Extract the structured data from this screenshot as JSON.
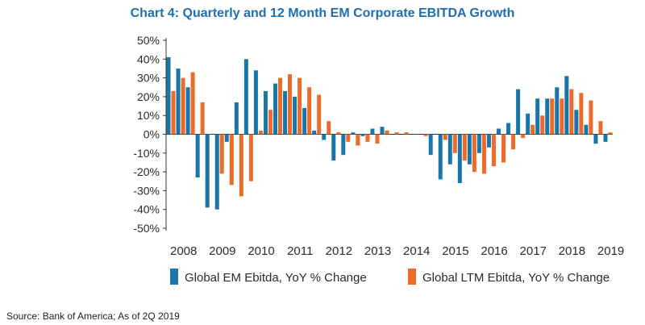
{
  "title": "Chart 4: Quarterly and 12 Month EM Corporate EBITDA Growth",
  "source": "Source: Bank of America; As of 2Q 2019",
  "colors": {
    "em": "#1a76a8",
    "ltm": "#ec6a2a",
    "title": "#1f6fb0",
    "axis": "#333333"
  },
  "chart_data": {
    "type": "bar",
    "title": "Chart 4: Quarterly and 12 Month EM Corporate EBITDA Growth",
    "xlabel": "",
    "ylabel": "",
    "ylim": [
      -50,
      50
    ],
    "y_ticks": [
      "50%",
      "40%",
      "30%",
      "20%",
      "10%",
      "0%",
      "-10%",
      "-20%",
      "-30%",
      "-40%",
      "-50%"
    ],
    "x_tick_labels": [
      "2008",
      "2009",
      "2010",
      "2011",
      "2012",
      "2013",
      "2014",
      "2015",
      "2016",
      "2017",
      "2018",
      "2019"
    ],
    "grid": false,
    "legend_position": "bottom",
    "categories": [
      "1Q08",
      "2Q08",
      "3Q08",
      "4Q08",
      "1Q09",
      "2Q09",
      "3Q09",
      "4Q09",
      "1Q10",
      "2Q10",
      "3Q10",
      "4Q10",
      "1Q11",
      "2Q11",
      "3Q11",
      "4Q11",
      "1Q12",
      "2Q12",
      "3Q12",
      "4Q12",
      "1Q13",
      "2Q13",
      "3Q13",
      "4Q13",
      "1Q14",
      "2Q14",
      "3Q14",
      "4Q14",
      "1Q15",
      "2Q15",
      "3Q15",
      "4Q15",
      "1Q16",
      "2Q16",
      "3Q16",
      "4Q16",
      "1Q17",
      "2Q17",
      "3Q17",
      "4Q17",
      "1Q18",
      "2Q18",
      "3Q18",
      "4Q18",
      "1Q19",
      "2Q19"
    ],
    "series": [
      {
        "name": "Global EM Ebitda, YoY % Change",
        "values": [
          41,
          35,
          25,
          -23,
          -39,
          -40,
          -4,
          17,
          40,
          34,
          23,
          27,
          23,
          20,
          14,
          2,
          -3,
          -14,
          -11,
          1,
          -1,
          3,
          4,
          0,
          0,
          0,
          0,
          -11,
          -24,
          -16,
          -26,
          -16,
          -10,
          -7,
          3,
          6,
          24,
          11,
          19,
          19,
          25,
          31,
          13,
          5,
          -5,
          -4
        ]
      },
      {
        "name": "Global LTM Ebitda, YoY % Change",
        "values": [
          23,
          30,
          33,
          17,
          0,
          -21,
          -27,
          -33,
          -25,
          2,
          13,
          30,
          32,
          30,
          25,
          21,
          7,
          1,
          -4,
          -6,
          -4,
          -5,
          2,
          1,
          1,
          0,
          -1,
          0,
          -3,
          -10,
          -14,
          -20,
          -21,
          -17,
          -15,
          -8,
          -2,
          5,
          10,
          19,
          19,
          24,
          22,
          18,
          7,
          1
        ]
      }
    ]
  }
}
